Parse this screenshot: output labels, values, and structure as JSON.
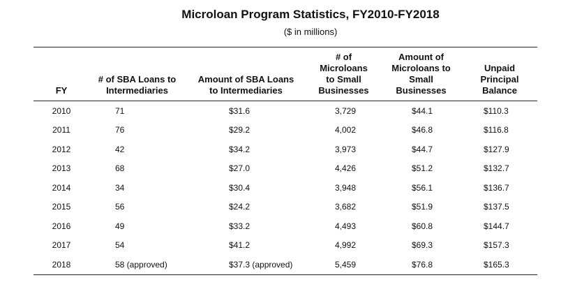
{
  "header": {
    "title": "Microloan Program Statistics, FY2010-FY2018",
    "subtitle": "($ in millions)"
  },
  "table": {
    "columns": [
      "FY",
      "# of SBA Loans to Intermediaries",
      "Amount of SBA Loans to Intermediaries",
      "# of Microloans to Small Businesses",
      "Amount of Microloans to Small Businesses",
      "Unpaid Principal Balance"
    ],
    "rows": [
      [
        "2010",
        "71",
        "$31.6",
        "3,729",
        "$44.1",
        "$110.3"
      ],
      [
        "2011",
        "76",
        "$29.2",
        "4,002",
        "$46.8",
        "$116.8"
      ],
      [
        "2012",
        "42",
        "$34.2",
        "3,973",
        "$44.7",
        "$127.9"
      ],
      [
        "2013",
        "68",
        "$27.0",
        "4,426",
        "$51.2",
        "$132.7"
      ],
      [
        "2014",
        "34",
        "$30.4",
        "3,948",
        "$56.1",
        "$136.7"
      ],
      [
        "2015",
        "56",
        "$24.2",
        "3,682",
        "$51.9",
        "$137.5"
      ],
      [
        "2016",
        "49",
        "$33.2",
        "4,493",
        "$60.8",
        "$144.7"
      ],
      [
        "2017",
        "54",
        "$41.2",
        "4,992",
        "$69.3",
        "$157.3"
      ],
      [
        "2018",
        "58 (approved)",
        "$37.3 (approved)",
        "5,459",
        "$76.8",
        "$165.3"
      ]
    ]
  }
}
